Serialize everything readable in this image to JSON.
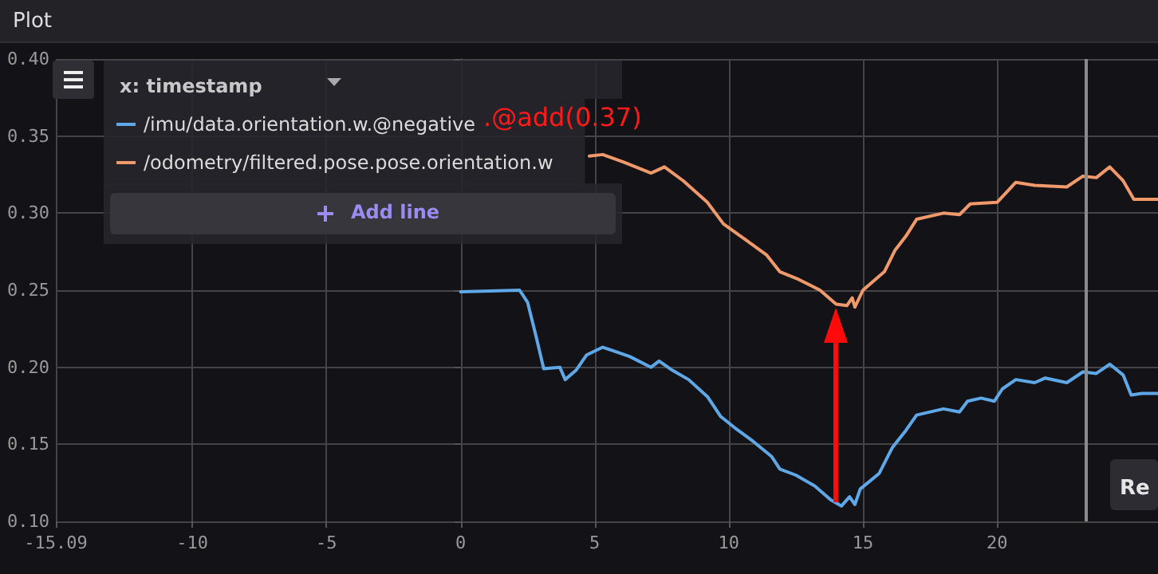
{
  "chart_data": {
    "type": "line",
    "title": "Plot",
    "x": [
      0,
      2.2,
      2.5,
      2.8,
      3.1,
      3.7,
      3.9,
      4.3,
      4.7,
      5.3,
      6.3,
      7.1,
      7.4,
      7.9,
      8.5,
      9.2,
      9.7,
      10.2,
      10.9,
      11.6,
      11.9,
      12.5,
      13.2,
      13.8,
      14.2,
      14.5,
      14.7,
      14.9,
      15.6,
      16.1,
      16.6,
      17.0,
      18.0,
      18.6,
      18.9,
      19.4,
      19.9,
      20.2,
      20.7,
      21.4,
      21.8,
      22.6,
      23.2,
      23.7,
      24.2,
      24.7,
      25.0,
      25.4,
      26.0
    ],
    "series": [
      {
        "name": "/imu/data.orientation.w.@negative",
        "color": "#5fa8e8",
        "values": [
          0.249,
          0.25,
          0.242,
          0.221,
          0.199,
          0.2,
          0.192,
          0.198,
          0.208,
          0.213,
          0.207,
          0.2,
          0.204,
          0.198,
          0.192,
          0.181,
          0.168,
          0.161,
          0.152,
          0.142,
          0.134,
          0.13,
          0.123,
          0.114,
          0.11,
          0.116,
          0.111,
          0.121,
          0.131,
          0.148,
          0.159,
          0.169,
          0.173,
          0.171,
          0.178,
          0.18,
          0.178,
          0.186,
          0.192,
          0.19,
          0.193,
          0.19,
          0.197,
          0.196,
          0.202,
          0.195,
          0.182,
          0.183,
          0.183
        ]
      },
      {
        "name": "/odometry/filtered.pose.pose.orientation.w",
        "color": "#f09a6c",
        "x": [
          4.8,
          5.3,
          6.1,
          7.1,
          7.6,
          8.3,
          9.2,
          9.8,
          10.6,
          11.4,
          11.9,
          12.6,
          13.4,
          14.0,
          14.4,
          14.6,
          14.7,
          15.0,
          15.8,
          16.2,
          16.6,
          17.0,
          18.0,
          18.6,
          19.0,
          20.0,
          20.7,
          21.4,
          22.6,
          23.2,
          23.7,
          24.2,
          24.7,
          25.1,
          26.0
        ],
        "values": [
          0.337,
          0.338,
          0.333,
          0.326,
          0.33,
          0.321,
          0.307,
          0.293,
          0.283,
          0.273,
          0.262,
          0.257,
          0.25,
          0.241,
          0.24,
          0.245,
          0.239,
          0.25,
          0.262,
          0.276,
          0.285,
          0.296,
          0.3,
          0.299,
          0.306,
          0.307,
          0.32,
          0.318,
          0.317,
          0.324,
          0.323,
          0.33,
          0.321,
          0.309,
          0.309
        ]
      }
    ],
    "xlim": [
      -15.09,
      26.0
    ],
    "xticks": [
      -15.09,
      -10,
      -5,
      0,
      5,
      10,
      15,
      20
    ],
    "ylim": [
      0.1,
      0.4
    ],
    "yticks": [
      {
        "value": 0.1,
        "label": "0.10"
      },
      {
        "value": 0.15,
        "label": "0.15"
      },
      {
        "value": 0.2,
        "label": "0.20"
      },
      {
        "value": 0.25,
        "label": "0.25"
      },
      {
        "value": 0.3,
        "label": "0.30"
      },
      {
        "value": 0.35,
        "label": "0.35"
      },
      {
        "value": 0.4,
        "label": "0.40"
      }
    ],
    "ref_lines": [
      {
        "axis": "x",
        "value": 23.3,
        "color": "#8a8a8a"
      }
    ],
    "annotations": [
      "x: timestamp",
      "Add line",
      ".@add(0.37)",
      "Re"
    ],
    "grid": true,
    "legend": "top left",
    "marker": "none",
    "line_style": "solid"
  }
}
